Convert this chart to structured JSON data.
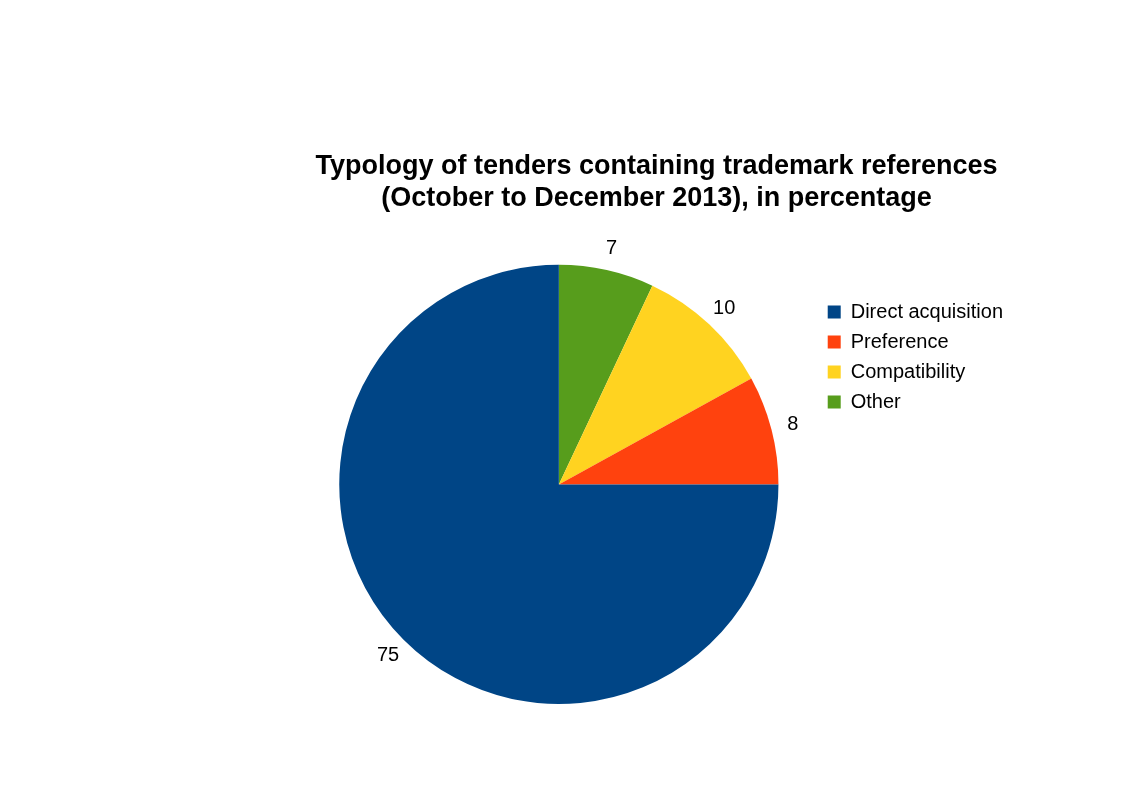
{
  "chart_data": {
    "type": "pie",
    "title": "Typology of tenders containing trademark references\n(October to December 2013), in percentage",
    "categories": [
      "Direct acquisition",
      "Preference",
      "Compatibility",
      "Other"
    ],
    "values": [
      75,
      8,
      10,
      7
    ],
    "colors": [
      "#004586",
      "#ff420e",
      "#ffd320",
      "#579d1c"
    ],
    "data_labels": true,
    "legend": "right"
  }
}
